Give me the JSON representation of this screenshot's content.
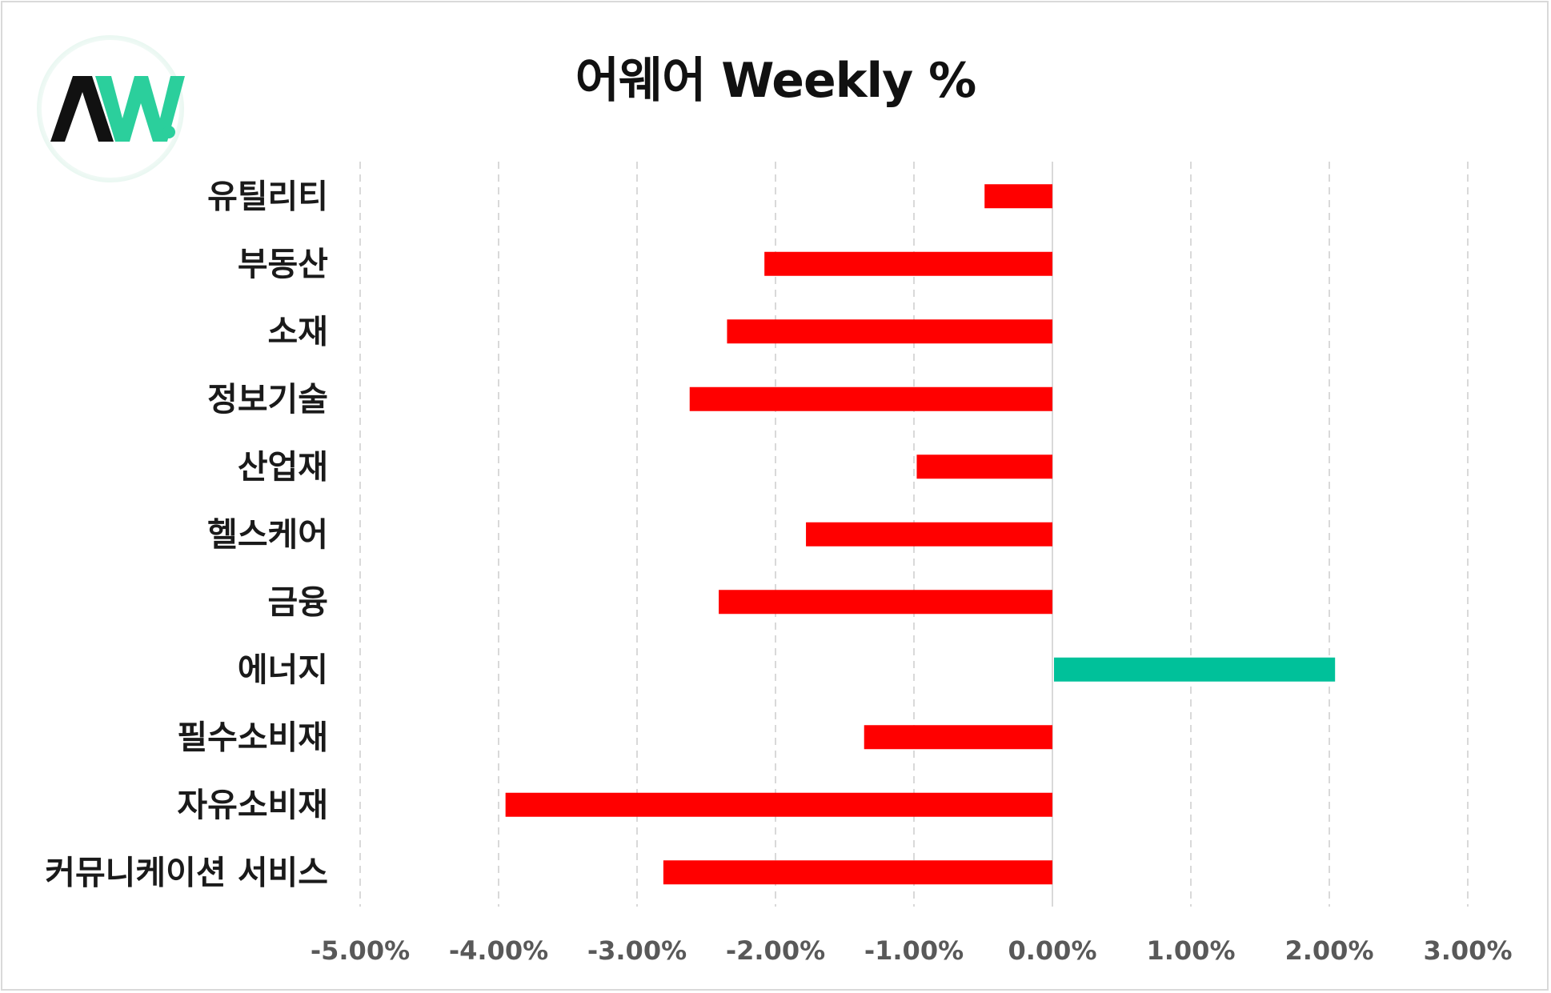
{
  "chart_data": {
    "type": "bar",
    "orientation": "horizontal",
    "title": "어웨어 Weekly %",
    "categories": [
      "유틸리티",
      "부동산",
      "소재",
      "정보기술",
      "산업재",
      "헬스케어",
      "금융",
      "에너지",
      "필수소비재",
      "자유소비재",
      "커뮤니케이션 서비스"
    ],
    "values": [
      -0.49,
      -2.08,
      -2.35,
      -2.62,
      -0.98,
      -1.78,
      -2.41,
      2.03,
      -1.36,
      -3.95,
      -2.81
    ],
    "xlim": [
      -5,
      3
    ],
    "x_ticks": [
      -5,
      -4,
      -3,
      -2,
      -1,
      0,
      1,
      2,
      3
    ],
    "x_tick_labels": [
      "-5.00%",
      "-4.00%",
      "-3.00%",
      "-2.00%",
      "-1.00%",
      "0.00%",
      "1.00%",
      "2.00%",
      "3.00%"
    ],
    "grid": "vertical-dashed",
    "colors": {
      "negative": "#ff0000",
      "positive": "#00c19a",
      "grid": "#d9d9d9",
      "zero_line": "#d9d9d9"
    }
  },
  "logo": {
    "text": "AW.",
    "colors": {
      "dark": "#111111",
      "accent": "#2bcf9c"
    }
  }
}
